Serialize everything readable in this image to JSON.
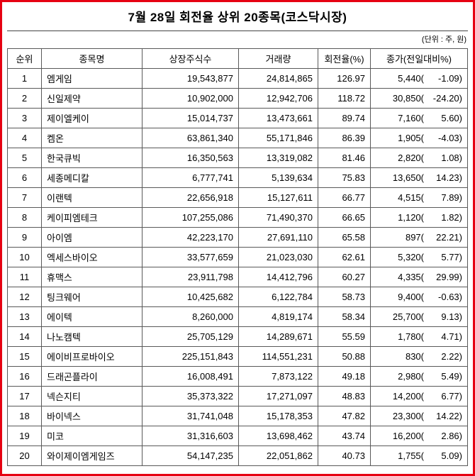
{
  "title": "7월 28일 회전율 상위 20종목(코스닥시장)",
  "unit_note": "(단위 : 주, 원)",
  "chart_data": {
    "type": "table",
    "title": "7월 28일 회전율 상위 20종목(코스닥시장)",
    "unit_note": "(단위 : 주, 원)",
    "columns": [
      "순위",
      "종목명",
      "상장주식수",
      "거래량",
      "회전율(%)",
      "종가(전일대비%)"
    ],
    "rows": [
      [
        "1",
        "엠게임",
        "19,543,877",
        "24,814,865",
        "126.97",
        "5,440",
        "-1.09"
      ],
      [
        "2",
        "신일제약",
        "10,902,000",
        "12,942,706",
        "118.72",
        "30,850",
        "-24.20"
      ],
      [
        "3",
        "제이엘케이",
        "15,014,737",
        "13,473,661",
        "89.74",
        "7,160",
        "5.60"
      ],
      [
        "4",
        "켐온",
        "63,861,340",
        "55,171,846",
        "86.39",
        "1,905",
        "-4.03"
      ],
      [
        "5",
        "한국큐빅",
        "16,350,563",
        "13,319,082",
        "81.46",
        "2,820",
        "1.08"
      ],
      [
        "6",
        "세종메디칼",
        "6,777,741",
        "5,139,634",
        "75.83",
        "13,650",
        "14.23"
      ],
      [
        "7",
        "이랜텍",
        "22,656,918",
        "15,127,611",
        "66.77",
        "4,515",
        "7.89"
      ],
      [
        "8",
        "케이피엠테크",
        "107,255,086",
        "71,490,370",
        "66.65",
        "1,120",
        "1.82"
      ],
      [
        "9",
        "아이엠",
        "42,223,170",
        "27,691,110",
        "65.58",
        "897",
        "22.21"
      ],
      [
        "10",
        "엑세스바이오",
        "33,577,659",
        "21,023,030",
        "62.61",
        "5,320",
        "5.77"
      ],
      [
        "11",
        "휴맥스",
        "23,911,798",
        "14,412,796",
        "60.27",
        "4,335",
        "29.99"
      ],
      [
        "12",
        "팅크웨어",
        "10,425,682",
        "6,122,784",
        "58.73",
        "9,400",
        "-0.63"
      ],
      [
        "13",
        "에이텍",
        "8,260,000",
        "4,819,174",
        "58.34",
        "25,700",
        "9.13"
      ],
      [
        "14",
        "나노캠텍",
        "25,705,129",
        "14,289,671",
        "55.59",
        "1,780",
        "4.71"
      ],
      [
        "15",
        "에이비프로바이오",
        "225,151,843",
        "114,551,231",
        "50.88",
        "830",
        "2.22"
      ],
      [
        "16",
        "드래곤플라이",
        "16,008,491",
        "7,873,122",
        "49.18",
        "2,980",
        "5.49"
      ],
      [
        "17",
        "넥슨지티",
        "35,373,322",
        "17,271,097",
        "48.83",
        "14,200",
        "6.77"
      ],
      [
        "18",
        "바이넥스",
        "31,741,048",
        "15,178,353",
        "47.82",
        "23,300",
        "14.22"
      ],
      [
        "19",
        "미코",
        "31,316,603",
        "13,698,462",
        "43.74",
        "16,200",
        "2.86"
      ],
      [
        "20",
        "와이제이엠게임즈",
        "54,147,235",
        "22,051,862",
        "40.73",
        "1,755",
        "5.09"
      ]
    ]
  }
}
